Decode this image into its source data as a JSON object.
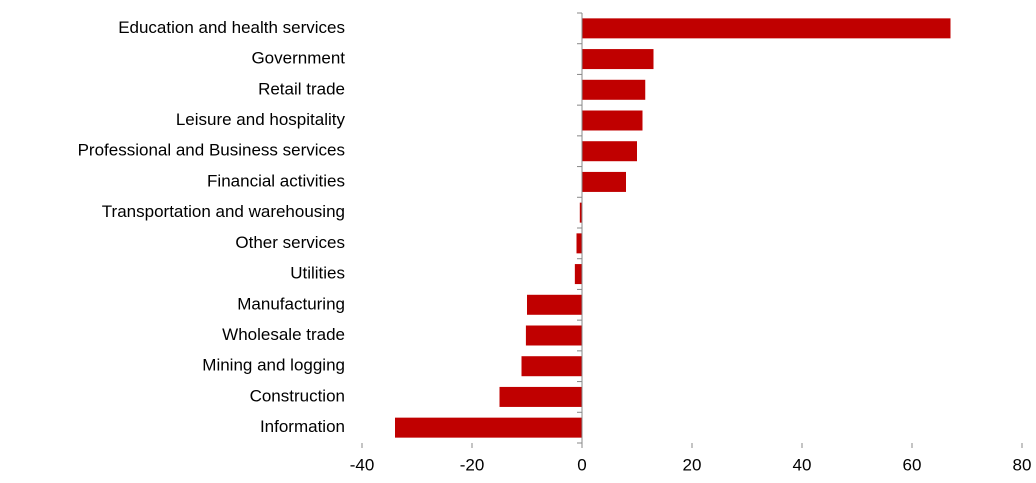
{
  "chart_data": {
    "type": "bar",
    "orientation": "horizontal",
    "color": "#c00000",
    "categories": [
      "Education and health services",
      "Government",
      "Retail trade",
      "Leisure and hospitality",
      "Professional and Business services",
      "Financial activities",
      "Transportation and warehousing",
      "Other services",
      "Utilities",
      "Manufacturing",
      "Wholesale trade",
      "Mining and logging",
      "Construction",
      "Information"
    ],
    "values": [
      67,
      13,
      11.5,
      11,
      10,
      8,
      -0.4,
      -1,
      -1.3,
      -10,
      -10.2,
      -11,
      -15,
      -34
    ],
    "xlim": [
      -40,
      80
    ],
    "xticks": [
      -40,
      -20,
      0,
      20,
      40,
      60,
      80
    ],
    "grid": false
  }
}
